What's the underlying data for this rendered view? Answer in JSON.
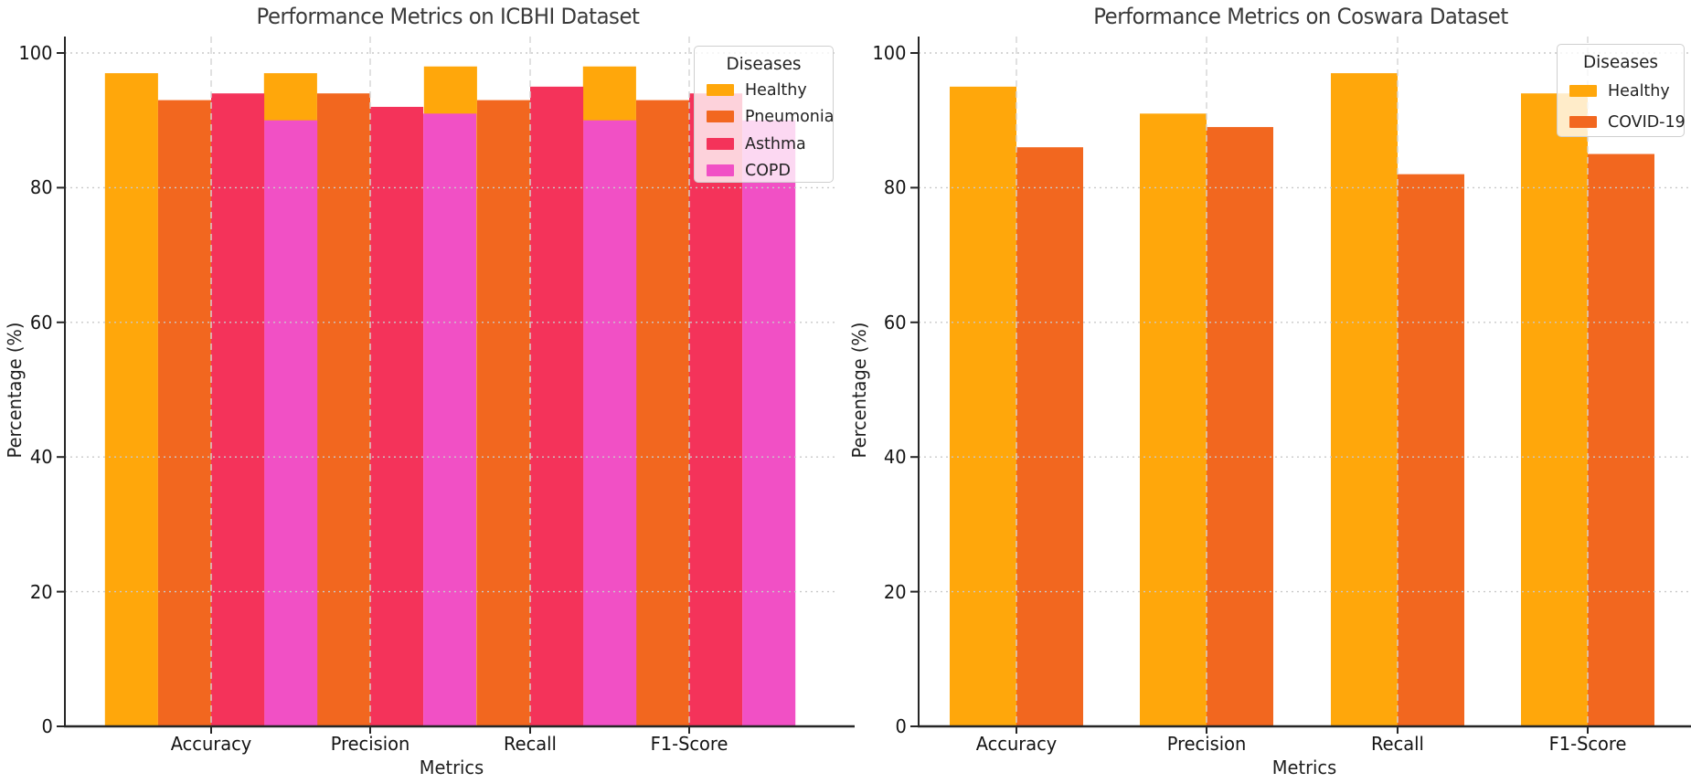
{
  "figure": {
    "background": "#ffffff",
    "grid_color": "#c9c9c9",
    "spine_color": "#262626",
    "text_color": "#141414"
  },
  "chart_data": [
    {
      "type": "bar",
      "title": "Performance Metrics on ICBHI Dataset",
      "xlabel": "Metrics",
      "ylabel": "Percentage (%)",
      "categories": [
        "Accuracy",
        "Precision",
        "Recall",
        "F1-Score"
      ],
      "ytick_labels": [
        "0",
        "20",
        "40",
        "60",
        "80",
        "100"
      ],
      "yticks": [
        0,
        20,
        40,
        60,
        80,
        100
      ],
      "ylim": [
        0,
        100
      ],
      "grid": true,
      "legend": {
        "title": "Diseases",
        "position": "upper right",
        "entries": [
          "Healthy",
          "Pneumonia",
          "Asthma",
          "COPD"
        ]
      },
      "series": [
        {
          "name": "Healthy",
          "color": "#FFA70B",
          "values": [
            97,
            97,
            98,
            98
          ]
        },
        {
          "name": "Pneumonia",
          "color": "#F2671F",
          "values": [
            93,
            94,
            93,
            93
          ]
        },
        {
          "name": "Asthma",
          "color": "#F4335A",
          "values": [
            94,
            92,
            95,
            94
          ]
        },
        {
          "name": "COPD",
          "color": "#F150C5",
          "values": [
            90,
            91,
            90,
            90
          ]
        }
      ],
      "bar_layout": "overlapping-groups"
    },
    {
      "type": "bar",
      "title": "Performance Metrics on Coswara Dataset",
      "xlabel": "Metrics",
      "ylabel": "Percentage (%)",
      "categories": [
        "Accuracy",
        "Precision",
        "Recall",
        "F1-Score"
      ],
      "ytick_labels": [
        "0",
        "20",
        "40",
        "60",
        "80",
        "100"
      ],
      "yticks": [
        0,
        20,
        40,
        60,
        80,
        100
      ],
      "ylim": [
        0,
        100
      ],
      "grid": true,
      "legend": {
        "title": "Diseases",
        "position": "upper right",
        "entries": [
          "Healthy",
          "COVID-19"
        ]
      },
      "series": [
        {
          "name": "Healthy",
          "color": "#FFA70B",
          "values": [
            95,
            91,
            97,
            94
          ]
        },
        {
          "name": "COVID-19",
          "color": "#F2671F",
          "values": [
            86,
            89,
            82,
            85
          ]
        }
      ],
      "bar_layout": "grouped-pairs"
    }
  ]
}
